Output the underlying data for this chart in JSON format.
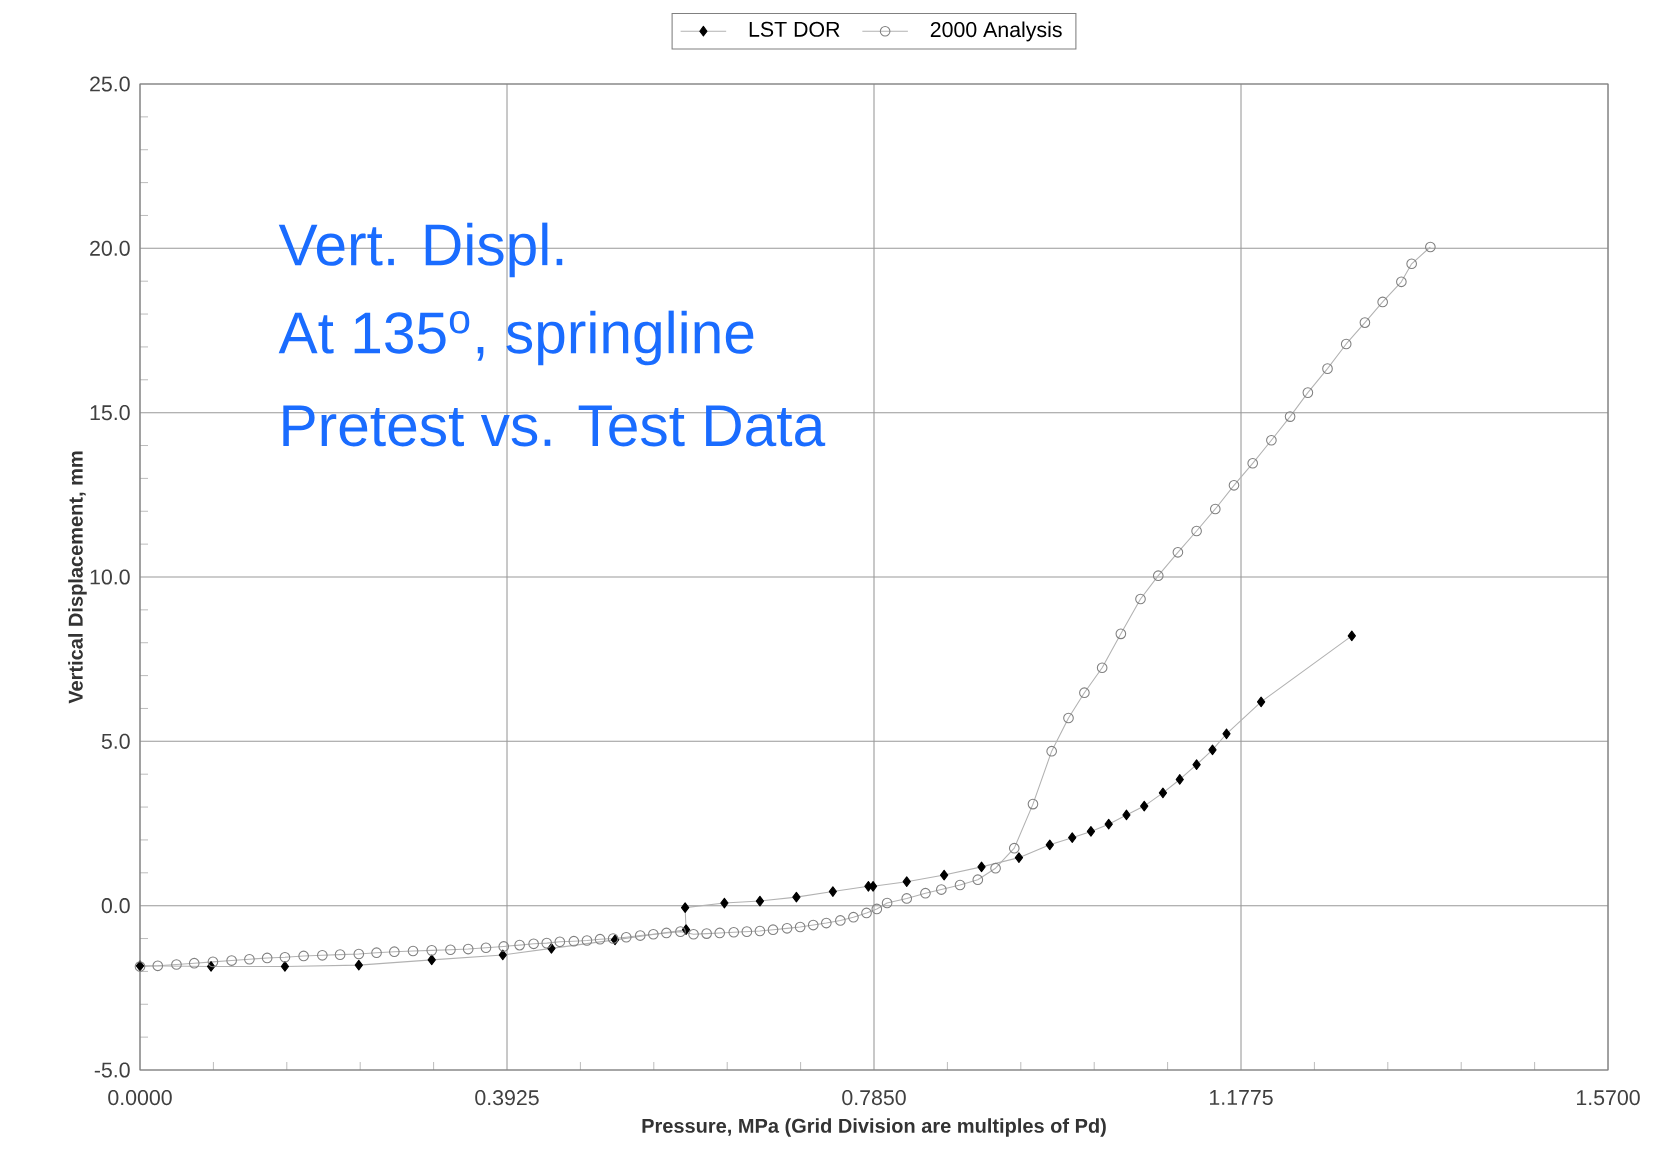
{
  "chart_data": {
    "type": "line",
    "xlabel": "Pressure, MPa (Grid Division are multiples of Pd)",
    "ylabel": "Vertical Displacement, mm",
    "annotations": [
      "Vert. Displ.",
      "At 135$^{o}$, springline",
      "Pretest vs. Test Data"
    ],
    "xlim": [
      0,
      1.57
    ],
    "ylim": [
      -5,
      25
    ],
    "xticks": [
      {
        "value": 0,
        "label": "0.0000"
      },
      {
        "value": 0.3925,
        "label": "0.3925"
      },
      {
        "value": 0.785,
        "label": "0.7850"
      },
      {
        "value": 1.1775,
        "label": "1.1775"
      },
      {
        "value": 1.57,
        "label": "1.5700"
      }
    ],
    "yticks": [
      {
        "value": -5,
        "label": "-5.0"
      },
      {
        "value": 0,
        "label": "0.0"
      },
      {
        "value": 5,
        "label": "5.0"
      },
      {
        "value": 10,
        "label": "10.0"
      },
      {
        "value": 15,
        "label": "15.0"
      },
      {
        "value": 20,
        "label": "20.0"
      },
      {
        "value": 25,
        "label": "25.0"
      }
    ],
    "grid": true,
    "legend": "top",
    "series": [
      {
        "name": "LST DOR",
        "color": "#000000",
        "marker": "diamond",
        "x": [
          0,
          0.076,
          0.155,
          0.234,
          0.312,
          0.388,
          0.44,
          0.508,
          0.584,
          0.583,
          0.625,
          0.663,
          0.702,
          0.741,
          0.779,
          0.784,
          0.82,
          0.86,
          0.9,
          0.94,
          0.973,
          0.997,
          1.017,
          1.036,
          1.055,
          1.074,
          1.094,
          1.112,
          1.13,
          1.147,
          1.162,
          1.199,
          1.296
        ],
        "values": [
          -1.83,
          -1.85,
          -1.85,
          -1.81,
          -1.65,
          -1.5,
          -1.3,
          -1.04,
          -0.73,
          -0.06,
          0.08,
          0.14,
          0.26,
          0.43,
          0.59,
          0.59,
          0.73,
          0.93,
          1.18,
          1.46,
          1.85,
          2.07,
          2.26,
          2.48,
          2.76,
          3.03,
          3.43,
          3.84,
          4.29,
          4.74,
          5.23,
          6.2,
          8.21
        ]
      },
      {
        "name": "2000 Analysis",
        "color": "#808080",
        "marker": "circle",
        "x": [
          0,
          0.019,
          0.039,
          0.058,
          0.078,
          0.098,
          0.117,
          0.136,
          0.155,
          0.175,
          0.195,
          0.214,
          0.234,
          0.253,
          0.272,
          0.292,
          0.312,
          0.332,
          0.351,
          0.37,
          0.389,
          0.406,
          0.421,
          0.435,
          0.449,
          0.464,
          0.478,
          0.492,
          0.506,
          0.52,
          0.535,
          0.549,
          0.563,
          0.578,
          0.592,
          0.606,
          0.62,
          0.635,
          0.649,
          0.663,
          0.677,
          0.692,
          0.706,
          0.72,
          0.734,
          0.749,
          0.763,
          0.777,
          0.788,
          0.799,
          0.82,
          0.84,
          0.857,
          0.877,
          0.896,
          0.915,
          0.935,
          0.955,
          0.975,
          0.993,
          1.01,
          1.029,
          1.049,
          1.07,
          1.089,
          1.11,
          1.13,
          1.15,
          1.17,
          1.19,
          1.21,
          1.23,
          1.249,
          1.27,
          1.29,
          1.31,
          1.329,
          1.349,
          1.36,
          1.38
        ],
        "values": [
          -1.85,
          -1.83,
          -1.79,
          -1.75,
          -1.71,
          -1.67,
          -1.63,
          -1.59,
          -1.57,
          -1.53,
          -1.51,
          -1.49,
          -1.47,
          -1.43,
          -1.4,
          -1.38,
          -1.36,
          -1.34,
          -1.32,
          -1.28,
          -1.24,
          -1.2,
          -1.16,
          -1.14,
          -1.1,
          -1.08,
          -1.06,
          -1.02,
          -1.0,
          -0.96,
          -0.91,
          -0.87,
          -0.83,
          -0.79,
          -0.87,
          -0.85,
          -0.83,
          -0.81,
          -0.79,
          -0.77,
          -0.73,
          -0.69,
          -0.65,
          -0.59,
          -0.53,
          -0.45,
          -0.35,
          -0.22,
          -0.1,
          0.08,
          0.22,
          0.38,
          0.49,
          0.63,
          0.79,
          1.14,
          1.75,
          3.09,
          4.7,
          5.71,
          6.48,
          7.24,
          8.27,
          9.33,
          10.04,
          10.75,
          11.4,
          12.07,
          12.79,
          13.46,
          14.16,
          14.88,
          15.61,
          16.34,
          17.09,
          17.74,
          18.37,
          18.98,
          19.53,
          20.04
        ]
      }
    ]
  }
}
